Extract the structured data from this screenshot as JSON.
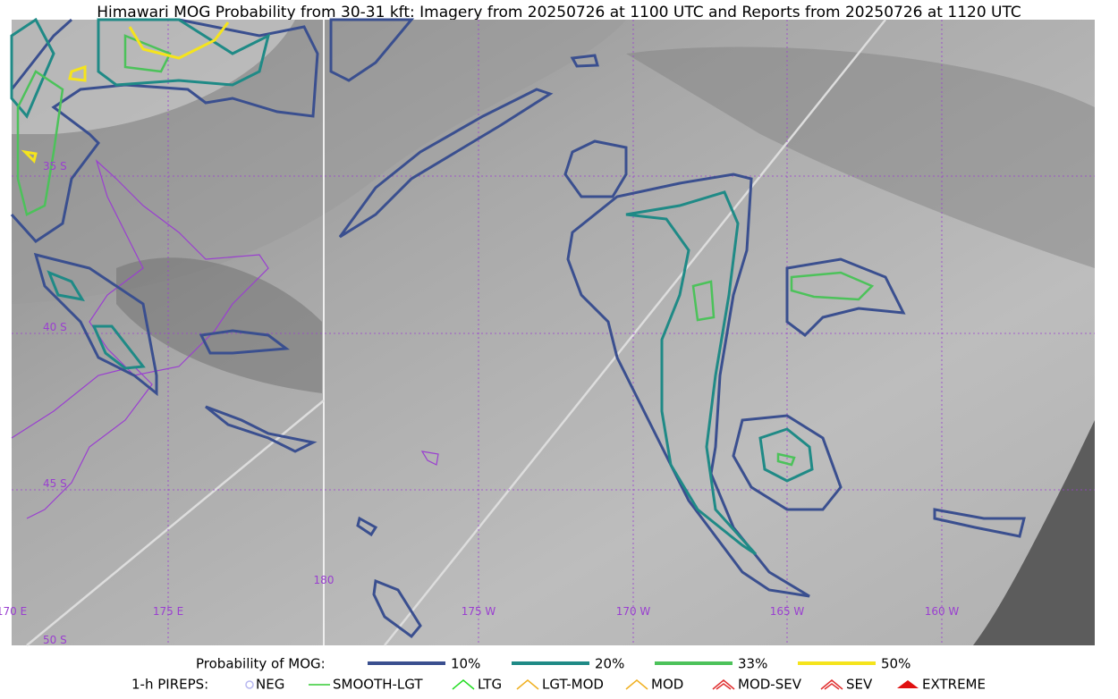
{
  "title": "Himawari MOG Probability from 30-31 kft: Imagery from 20250726 at 1100 UTC and Reports from 20250726 at 1120 UTC",
  "map": {
    "lat_labels": [
      "35 S",
      "40 S",
      "45 S",
      "50 S"
    ],
    "lon_labels": [
      "170 E",
      "175 E",
      "180",
      "175 W",
      "170 W",
      "165 W",
      "160 W"
    ]
  },
  "legend": {
    "probability": {
      "label": "Probability of MOG:",
      "items": [
        {
          "label": "10%",
          "color": "#3a4f8f"
        },
        {
          "label": "20%",
          "color": "#1f8a86"
        },
        {
          "label": "33%",
          "color": "#4cc25a"
        },
        {
          "label": "50%",
          "color": "#f5e41c"
        }
      ]
    },
    "pireps": {
      "label": "1-h PIREPS:",
      "items": [
        {
          "label": "NEG",
          "color": "#b8b8f0"
        },
        {
          "label": "SMOOTH-LGT",
          "color": "#33cc33"
        },
        {
          "label": "LTG",
          "color": "#22dd22"
        },
        {
          "label": "LGT-MOD",
          "color": "#f0b020"
        },
        {
          "label": "MOD",
          "color": "#f0b020"
        },
        {
          "label": "MOD-SEV",
          "color": "#e03030"
        },
        {
          "label": "SEV",
          "color": "#e03030"
        },
        {
          "label": "EXTREME",
          "color": "#e01010"
        }
      ]
    }
  }
}
